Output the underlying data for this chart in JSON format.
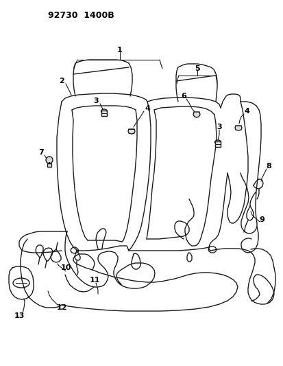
{
  "title": "92730  1400B",
  "bg": "#ffffff",
  "lc": "#1a1a1a",
  "lw": 1.0,
  "label_fs": 7.5
}
